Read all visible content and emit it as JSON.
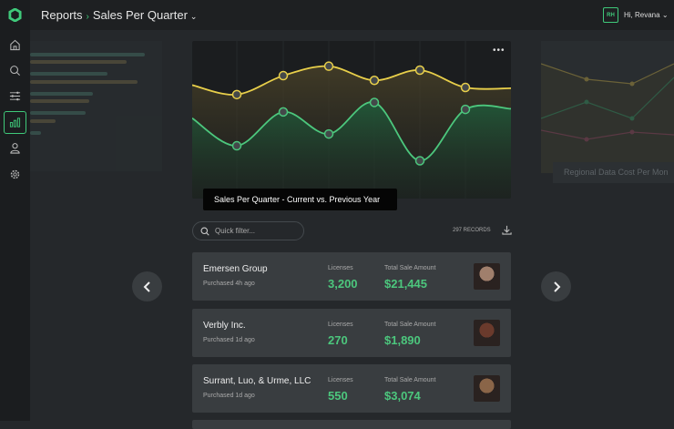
{
  "header": {
    "breadcrumb_root": "Reports",
    "breadcrumb_current": "Sales Per Quarter",
    "user_initials": "RH",
    "greeting": "Hi, Revana"
  },
  "sidebar": {
    "items": [
      {
        "icon": "home-icon"
      },
      {
        "icon": "search-icon"
      },
      {
        "icon": "sliders-icon"
      },
      {
        "icon": "bar-chart-icon",
        "active": true
      },
      {
        "icon": "user-icon"
      },
      {
        "icon": "gear-icon"
      }
    ]
  },
  "colors": {
    "accent": "#3fc97a",
    "previous": "#e8cf4a",
    "current": "#4cc77d",
    "background": "#25282b"
  },
  "chart_data": {
    "type": "area",
    "title": "Sales Per Quarter - Current  vs. Previous Year",
    "x": [
      0,
      1,
      2,
      3,
      4,
      5,
      6,
      7
    ],
    "series": [
      {
        "values": [
          72,
          66,
          78,
          84,
          75,
          81.5,
          70.5,
          70
        ],
        "color": "#e8cf4a"
      },
      {
        "values": [
          51,
          33.5,
          55,
          41,
          61,
          24,
          56.6,
          57
        ],
        "color": "#4cc77d"
      }
    ],
    "ylim": [
      0,
      100
    ],
    "grid": "vertical",
    "markers_on": [
      1,
      2,
      3,
      4,
      5,
      6
    ]
  },
  "side_chart": {
    "title": "Regional Data Cost Per Mon"
  },
  "toolbar": {
    "filter_placeholder": "Quick filter...",
    "records": "297 RECORDS"
  },
  "sales": [
    {
      "company": "Emersen Group",
      "purchased": "Purchased 4h ago",
      "licenses_label": "Licenses",
      "licenses": "3,200",
      "total_label": "Total Sale Amount",
      "total": "$21,445",
      "photo_color": "#a07f6c"
    },
    {
      "company": "Verbly Inc.",
      "purchased": "Purchased 1d ago",
      "licenses_label": "Licenses",
      "licenses": "270",
      "total_label": "Total Sale Amount",
      "total": "$1,890",
      "photo_color": "#6a3a2c"
    },
    {
      "company": "Surrant, Luo, & Urme, LLC",
      "purchased": "Purchased 1d ago",
      "licenses_label": "Licenses",
      "licenses": "550",
      "total_label": "Total Sale Amount",
      "total": "$3,074",
      "photo_color": "#8a6548"
    }
  ]
}
